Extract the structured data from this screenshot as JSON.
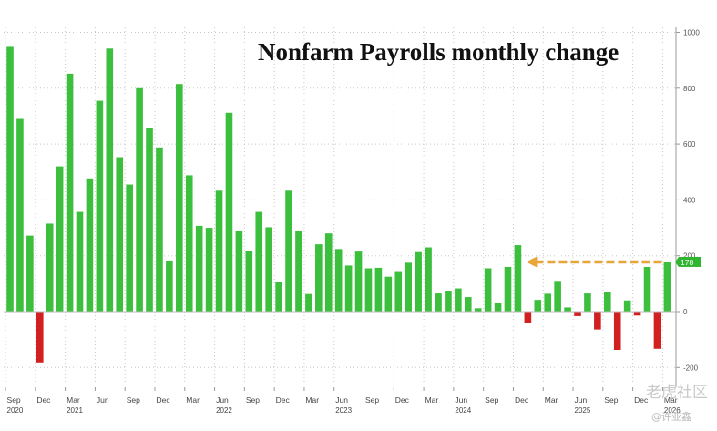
{
  "chart_data": {
    "type": "bar",
    "title": "Nonfarm Payrolls monthly change",
    "xlabel": "",
    "ylabel": "",
    "ylim": [
      -250,
      1030
    ],
    "yticks": [
      1000,
      800,
      600,
      400,
      200,
      0,
      -200
    ],
    "grid": true,
    "y_axis_position": "right",
    "last_value_label": "178",
    "colors": {
      "positive": "#3cbf3c",
      "negative": "#d21f1f",
      "arrow": "#e7a53a",
      "label_bg": "#2fb52f"
    },
    "categories": [
      "2020-09",
      "2020-10",
      "2020-11",
      "2020-12",
      "2021-01",
      "2021-02",
      "2021-03",
      "2021-04",
      "2021-05",
      "2021-06",
      "2021-07",
      "2021-08",
      "2021-09",
      "2021-10",
      "2021-11",
      "2021-12",
      "2022-01",
      "2022-02",
      "2022-03",
      "2022-04",
      "2022-05",
      "2022-06",
      "2022-07",
      "2022-08",
      "2022-09",
      "2022-10",
      "2022-11",
      "2022-12",
      "2023-01",
      "2023-02",
      "2023-03",
      "2023-04",
      "2023-05",
      "2023-06",
      "2023-07",
      "2023-08",
      "2023-09",
      "2023-10",
      "2023-11",
      "2023-12",
      "2024-01",
      "2024-02",
      "2024-03",
      "2024-04",
      "2024-05",
      "2024-06",
      "2024-07",
      "2024-08",
      "2024-09",
      "2024-10",
      "2024-11",
      "2024-12",
      "2025-01",
      "2025-02",
      "2025-03",
      "2025-04",
      "2025-05",
      "2025-06",
      "2025-07",
      "2025-08",
      "2025-09",
      "2025-10",
      "2025-11",
      "2025-12",
      "2026-01",
      "2026-02",
      "2026-03"
    ],
    "values": [
      948,
      690,
      272,
      -182,
      315,
      520,
      852,
      357,
      477,
      755,
      942,
      553,
      455,
      800,
      657,
      588,
      183,
      815,
      488,
      307,
      300,
      433,
      712,
      290,
      218,
      357,
      302,
      105,
      433,
      290,
      63,
      241,
      280,
      224,
      165,
      215,
      155,
      157,
      125,
      145,
      175,
      213,
      230,
      65,
      75,
      83,
      52,
      12,
      155,
      30,
      160,
      238,
      -42,
      42,
      64,
      110,
      15,
      -16,
      65,
      -64,
      71,
      -137,
      40,
      -14,
      160,
      -133,
      178
    ],
    "x_tick_labels": [
      {
        "i": 0,
        "label": "Sep"
      },
      {
        "i": 3,
        "label": "Dec"
      },
      {
        "i": 6,
        "label": "Mar"
      },
      {
        "i": 9,
        "label": "Jun"
      },
      {
        "i": 12,
        "label": "Sep"
      },
      {
        "i": 15,
        "label": "Dec"
      },
      {
        "i": 18,
        "label": "Mar"
      },
      {
        "i": 21,
        "label": "Jun"
      },
      {
        "i": 24,
        "label": "Sep"
      },
      {
        "i": 27,
        "label": "Dec"
      },
      {
        "i": 30,
        "label": "Mar"
      },
      {
        "i": 33,
        "label": "Jun"
      },
      {
        "i": 36,
        "label": "Sep"
      },
      {
        "i": 39,
        "label": "Dec"
      },
      {
        "i": 42,
        "label": "Mar"
      },
      {
        "i": 45,
        "label": "Jun"
      },
      {
        "i": 48,
        "label": "Sep"
      },
      {
        "i": 51,
        "label": "Dec"
      },
      {
        "i": 54,
        "label": "Mar"
      },
      {
        "i": 57,
        "label": "Jun"
      },
      {
        "i": 60,
        "label": "Sep"
      },
      {
        "i": 63,
        "label": "Dec"
      },
      {
        "i": 66,
        "label": "Mar"
      }
    ],
    "year_labels": [
      {
        "i": 0,
        "label": "2020"
      },
      {
        "i": 6,
        "label": "2021"
      },
      {
        "i": 21,
        "label": "2022"
      },
      {
        "i": 33,
        "label": "2023"
      },
      {
        "i": 45,
        "label": "2024"
      },
      {
        "i": 57,
        "label": "2025"
      },
      {
        "i": 66,
        "label": "2026"
      }
    ],
    "annotation": {
      "from_index": 51,
      "to_index": 66,
      "value": 178
    }
  },
  "watermark": {
    "text": "老虎社区",
    "sub": "@许亚鑫"
  }
}
